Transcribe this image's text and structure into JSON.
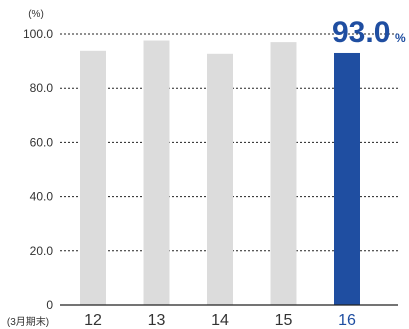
{
  "chart_data": {
    "type": "bar",
    "y_unit": "(%)",
    "x_unit": "(3月期末)",
    "categories": [
      "12",
      "13",
      "14",
      "15",
      "16"
    ],
    "values": [
      93.8,
      97.6,
      92.7,
      97.0,
      93.0
    ],
    "highlight_index": 4,
    "callout": {
      "value": "93.0",
      "unit": "%"
    },
    "ylim": [
      0,
      100
    ],
    "yticks": [
      "0",
      "20.0",
      "40.0",
      "60.0",
      "80.0",
      "100.0"
    ],
    "ytick_values": [
      0,
      20,
      40,
      60,
      80,
      100
    ],
    "grid": true,
    "colors": {
      "bar": "#dcdcdc",
      "highlight": "#1f4ea1",
      "highlight_text": "#1f4ea1",
      "grid": "#222222"
    }
  }
}
